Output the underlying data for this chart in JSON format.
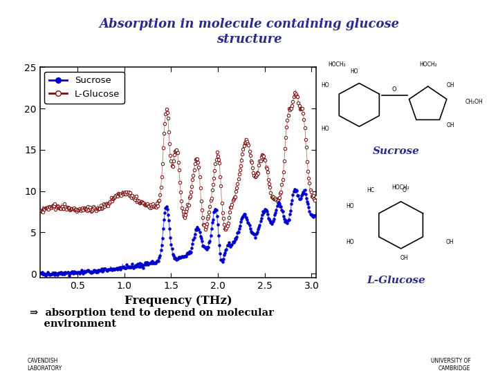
{
  "title_line1": "Absorption in molecule containing glucose",
  "title_line2": "structure",
  "title_color": "#2B2B8B",
  "xlabel": "Frequency (THz)",
  "xlim": [
    0.1,
    3.05
  ],
  "ylim": [
    -0.5,
    25
  ],
  "yticks": [
    0,
    5,
    10,
    15,
    20,
    25
  ],
  "xticks": [
    0.5,
    1.0,
    1.5,
    2.0,
    2.5,
    3.0
  ],
  "sucrose_color": "#0000CC",
  "lglucose_color": "#7B1010",
  "slide_bg": "#FFFFFF",
  "bar_color": "#5C2A00",
  "annotation": "⇒  absorption tend to depend on molecular\n    environment",
  "sucrose_label": "Sucrose",
  "lglucose_label": "L-Glucose",
  "sucrose_chem_label": "Sucrose",
  "lglucose_chem_label": "L-Glucose",
  "chem_label_color": "#2B2B8B"
}
